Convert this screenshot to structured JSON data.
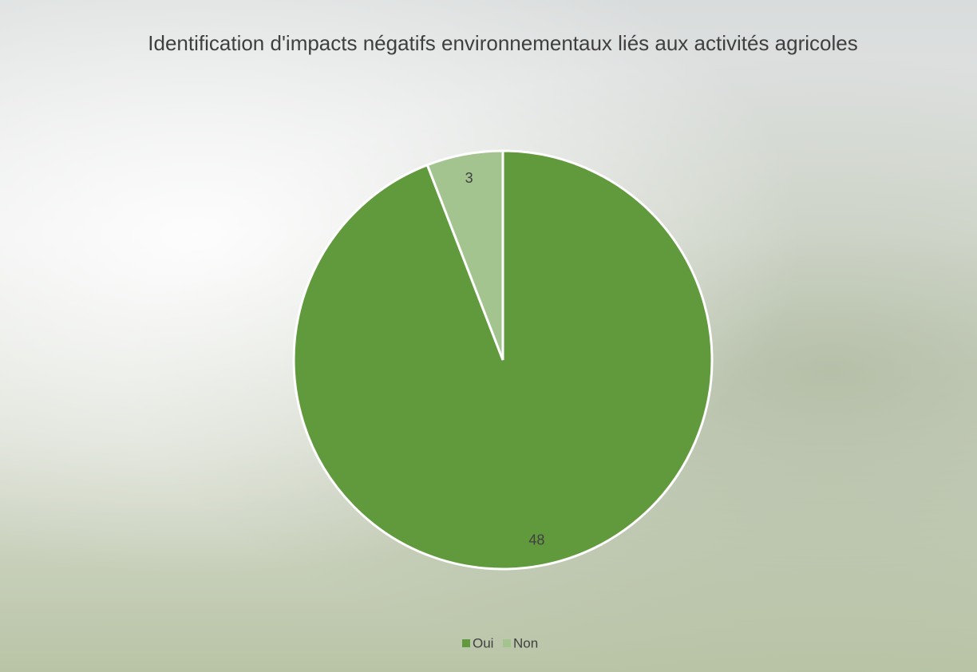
{
  "chart_data": {
    "type": "pie",
    "title": "Identification d'impacts négatifs environnementaux liés aux activités agricoles",
    "categories": [
      "Oui",
      "Non"
    ],
    "values": [
      48,
      3
    ],
    "colors": [
      "#619a3c",
      "#a3c48f"
    ],
    "legend": "bottom",
    "data_labels": true
  }
}
